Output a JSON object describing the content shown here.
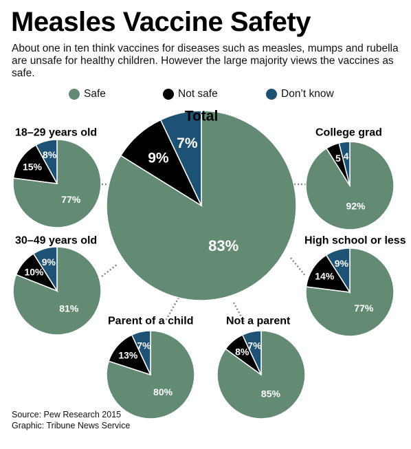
{
  "title": "Measles Vaccine Safety",
  "subtitle": "About one in ten think vaccines for diseases such as measles, mumps and rubella are unsafe for healthy children. However the large majority views the vaccines as safe.",
  "legend": [
    {
      "label": "Safe",
      "color": "#638b73"
    },
    {
      "label": "Not safe",
      "color": "#000000"
    },
    {
      "label": "Don’t know",
      "color": "#1e5275"
    }
  ],
  "chart_data": {
    "type": "pie",
    "series_names": [
      "Safe",
      "Not safe",
      "Don’t know"
    ],
    "colors": [
      "#638b73",
      "#000000",
      "#1e5275"
    ],
    "pies": [
      {
        "id": "total",
        "name": "Total",
        "values": [
          83,
          9,
          7
        ],
        "labels": [
          "83%",
          "9%",
          "7%"
        ]
      },
      {
        "id": "age-18-29",
        "name": "18–29 years old",
        "values": [
          77,
          15,
          8
        ],
        "labels": [
          "77%",
          "15%",
          "8%"
        ]
      },
      {
        "id": "age-30-49",
        "name": "30–49 years old",
        "values": [
          81,
          10,
          9
        ],
        "labels": [
          "81%",
          "10%",
          "9%"
        ]
      },
      {
        "id": "college-grad",
        "name": "College grad",
        "values": [
          92,
          5,
          4
        ],
        "labels": [
          "92%",
          "5",
          "4"
        ]
      },
      {
        "id": "high-school",
        "name": "High school or less",
        "values": [
          77,
          14,
          9
        ],
        "labels": [
          "77%",
          "14%",
          "9%"
        ]
      },
      {
        "id": "parent",
        "name": "Parent of a child",
        "values": [
          80,
          13,
          7
        ],
        "labels": [
          "80%",
          "13%",
          "7%"
        ]
      },
      {
        "id": "not-parent",
        "name": "Not a parent",
        "values": [
          85,
          8,
          7
        ],
        "labels": [
          "85%",
          "8%",
          "7%"
        ]
      }
    ]
  },
  "source": "Source: Pew Research 2015",
  "credit": "Graphic: Tribune News Service"
}
